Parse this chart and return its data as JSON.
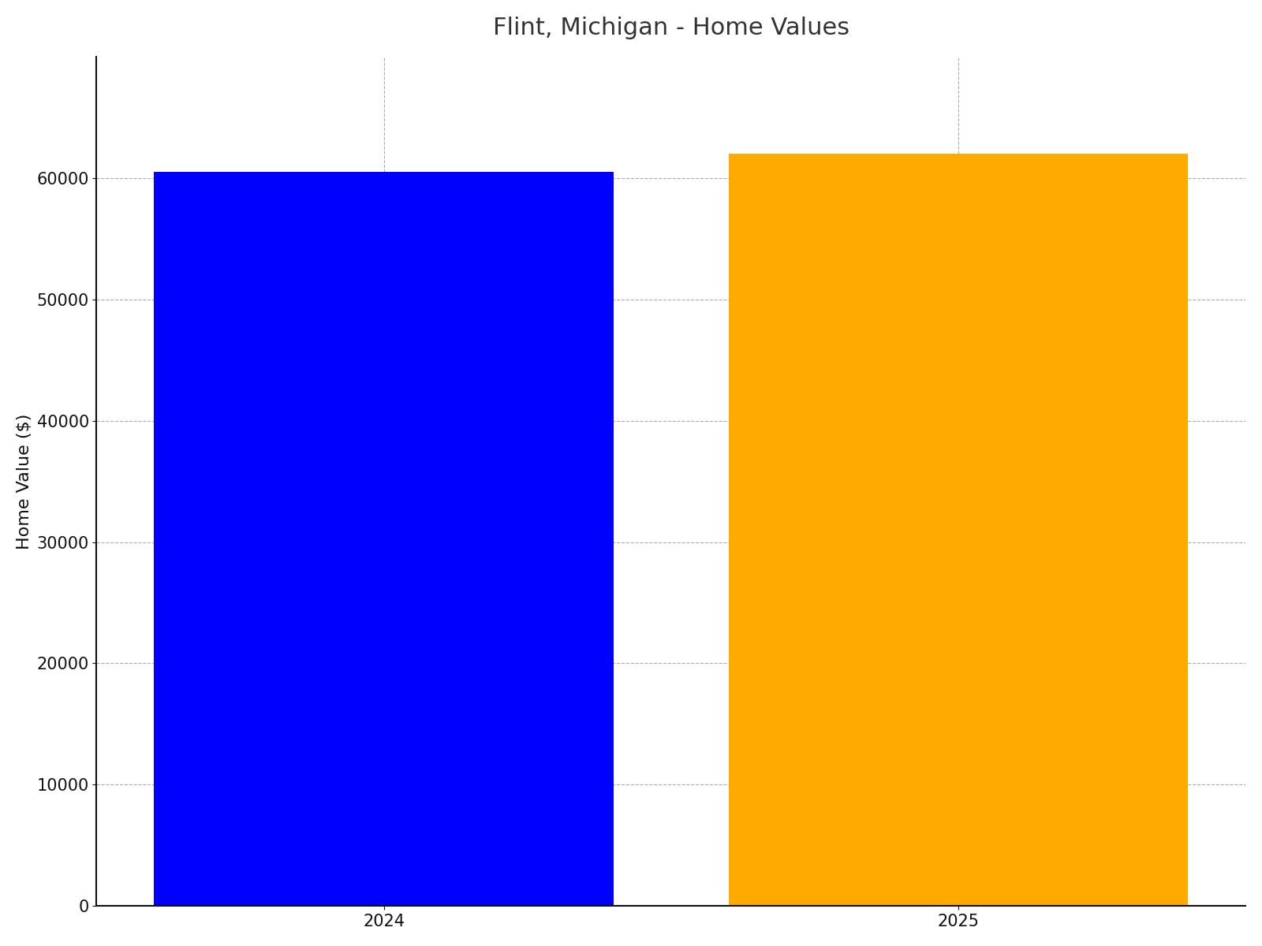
{
  "title": "Flint, Michigan - Home Values",
  "categories": [
    "2024",
    "2025"
  ],
  "values": [
    60500,
    62000
  ],
  "bar_colors": [
    "#0000ff",
    "#ffaa00"
  ],
  "ylabel": "Home Value ($)",
  "ylim": [
    0,
    70000
  ],
  "yticks": [
    0,
    10000,
    20000,
    30000,
    40000,
    50000,
    60000
  ],
  "background_color": "#ffffff",
  "title_fontsize": 22,
  "label_fontsize": 16,
  "tick_fontsize": 15,
  "title_color": "#333333",
  "axis_color": "#111111",
  "grid_color": "#aaaaaa",
  "bar_width": 0.8
}
